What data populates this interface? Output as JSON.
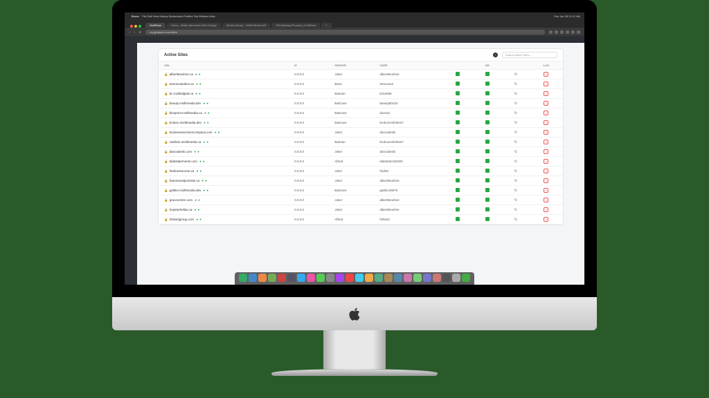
{
  "menubar": {
    "apple": "",
    "app": "Brave",
    "items": [
      "File",
      "Edit",
      "View",
      "History",
      "Bookmarks",
      "Profiles",
      "Tab",
      "Window",
      "Help"
    ],
    "right": "Sun Jan 28  11:12 AM"
  },
  "window_buttons": {
    "close": "#ff5f57",
    "min": "#febc2e",
    "max": "#28c840"
  },
  "tabs": [
    {
      "label": "GridPane",
      "active": true
    },
    {
      "label": "Home - Misfit Interactive Web Design",
      "active": false
    },
    {
      "label": "Media Library – Misfit Media WS",
      "active": false
    },
    {
      "label": "SSL/Backup/Process | GridPane",
      "active": false
    },
    {
      "label": "+",
      "active": false
    }
  ],
  "address_bar": {
    "url": "my.gridpane.com/sites"
  },
  "extension_count": 6,
  "page": {
    "panel_title": "Active Sites",
    "tooltip": "?",
    "search_placeholder": "Search Active Sites…",
    "columns": [
      "URL",
      "IP",
      "SERVER",
      "USER",
      "",
      "DB",
      "",
      "LOG"
    ],
    "rows": [
      {
        "url": "albertletushire.ca",
        "ip": "0.0.0.0",
        "server": "Joker",
        "user": "albertletushire"
      },
      {
        "url": "artuosostudios.ca",
        "ip": "0.0.0.0",
        "server": "Bane",
        "user": "artuosos2"
      },
      {
        "url": "bc-misfitdigital.ca",
        "ip": "0.0.0.0",
        "server": "Batman",
        "user": "bc54588"
      },
      {
        "url": "beauty.misfitmedia.dev",
        "ip": "0.0.0.0",
        "server": "BatCave",
        "user": "beauty80434"
      },
      {
        "url": "blueprint.misfitmedia.ca",
        "ip": "0.0.0.0",
        "server": "BatCave",
        "user": "domain"
      },
      {
        "url": "brokeo.misfitmedia.dev",
        "ip": "0.0.0.0",
        "server": "BatCave",
        "user": "brokoomisf48157"
      },
      {
        "url": "businesssectionscompany.com",
        "ip": "0.0.0.0",
        "server": "Joker",
        "user": "dancadeski"
      },
      {
        "url": "clubfam.misfitmedia.ca",
        "ip": "0.0.0.0",
        "server": "Batman",
        "user": "brokoomisf48157"
      },
      {
        "url": "dancadeski.com",
        "ip": "0.0.0.0",
        "server": "Joker",
        "user": "dancadeski"
      },
      {
        "url": "diabstatements.com",
        "ip": "0.0.0.0",
        "server": "Alfred",
        "user": "diabstate190393"
      },
      {
        "url": "findtoestoronto.ca",
        "ip": "0.0.0.0",
        "server": "Joker",
        "user": "findies"
      },
      {
        "url": "framesandportraits.ca",
        "ip": "0.0.0.0",
        "server": "Joker",
        "user": "albertletushire"
      },
      {
        "url": "gatifes.misfitmedia.dev",
        "ip": "0.0.0.0",
        "server": "BatCave",
        "user": "gatifec29870"
      },
      {
        "url": "gracecentre.com",
        "ip": "0.0.0.0",
        "server": "Joker",
        "user": "albertletushire"
      },
      {
        "url": "hopsterhellas.ca",
        "ip": "0.0.0.0",
        "server": "Joker",
        "user": "albertletushire"
      },
      {
        "url": "hsfwedgroup.com",
        "ip": "0.0.0.0",
        "server": "Alfred",
        "user": "hsfwed"
      }
    ]
  },
  "dock_colors": [
    "#3a6",
    "#48c",
    "#e84",
    "#7a5",
    "#c44",
    "#556",
    "#3ae",
    "#e5a",
    "#5c5",
    "#888",
    "#a4e",
    "#e44",
    "#4ce",
    "#ea4",
    "#5a8",
    "#a85",
    "#58a",
    "#c7a",
    "#7c7",
    "#77c",
    "#c77",
    "#555",
    "#aaa",
    "#4a4"
  ],
  "colors": {
    "bg": "#2a5a2a",
    "panel": "#ffffff",
    "page_bg": "#f4f5f7",
    "dark": "#2c2f36",
    "green": "#28a745",
    "red": "#e55353",
    "border": "#e5e5e5",
    "text": "#333333",
    "muted": "#888888"
  }
}
